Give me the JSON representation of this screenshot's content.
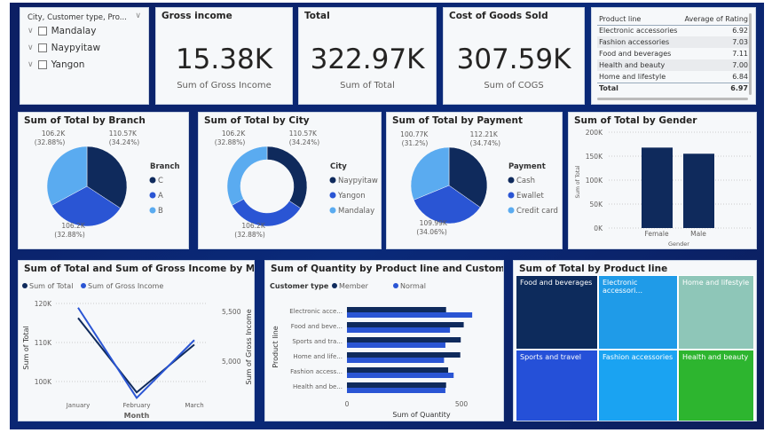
{
  "slicer": {
    "header": "City, Customer type, Pro...",
    "items": [
      "Mandalay",
      "Naypyitaw",
      "Yangon"
    ]
  },
  "kpis": [
    {
      "title": "Gross income",
      "value": "15.38K",
      "label": "Sum of Gross Income"
    },
    {
      "title": "Total",
      "value": "322.97K",
      "label": "Sum of Total"
    },
    {
      "title": "Cost of Goods Sold",
      "value": "307.59K",
      "label": "Sum of COGS"
    }
  ],
  "rating_table": {
    "headers": [
      "Product line",
      "Average of Rating"
    ],
    "rows": [
      [
        "Electronic accessories",
        "6.92"
      ],
      [
        "Fashion accessories",
        "7.03"
      ],
      [
        "Food and beverages",
        "7.11"
      ],
      [
        "Health and beauty",
        "7.00"
      ],
      [
        "Home and lifestyle",
        "6.84"
      ]
    ],
    "total": [
      "Total",
      "6.97"
    ]
  },
  "colors": {
    "dark": "#0f2a5c",
    "mid": "#2a55d4",
    "light": "#5aabf0",
    "background": "#0c1f63"
  },
  "chart_data": [
    {
      "type": "pie",
      "title": "Sum of Total by Branch",
      "legend_title": "Branch",
      "legend": "right",
      "slices": [
        {
          "name": "C",
          "value": 110570,
          "label": "110.57K",
          "pct": "(34.24%)"
        },
        {
          "name": "A",
          "value": 106200,
          "label": "106.2K",
          "pct": "(32.88%)"
        },
        {
          "name": "B",
          "value": 106200,
          "label": "106.2K",
          "pct": "(32.88%)"
        }
      ]
    },
    {
      "type": "donut",
      "title": "Sum of Total by City",
      "legend_title": "City",
      "legend": "right",
      "slices": [
        {
          "name": "Naypyitaw",
          "value": 110570,
          "label": "110.57K",
          "pct": "(34.24%)"
        },
        {
          "name": "Yangon",
          "value": 106200,
          "label": "106.2K",
          "pct": "(32.88%)"
        },
        {
          "name": "Mandalay",
          "value": 106200,
          "label": "106.2K",
          "pct": "(32.88%)"
        }
      ]
    },
    {
      "type": "pie",
      "title": "Sum of Total by Payment",
      "legend_title": "Payment",
      "legend": "right",
      "slices": [
        {
          "name": "Cash",
          "value": 112210,
          "label": "112.21K",
          "pct": "(34.74%)"
        },
        {
          "name": "Ewallet",
          "value": 109990,
          "label": "109.99K",
          "pct": "(34.06%)"
        },
        {
          "name": "Credit card",
          "value": 100770,
          "label": "100.77K",
          "pct": "(31.2%)"
        }
      ]
    },
    {
      "type": "bar",
      "title": "Sum of Total by Gender",
      "xlabel": "Gender",
      "ylabel": "Sum of Total",
      "categories": [
        "Female",
        "Male"
      ],
      "values": [
        167880,
        155080
      ],
      "ylim": [
        0,
        200000
      ],
      "yticks": [
        "0K",
        "50K",
        "100K",
        "150K",
        "200K"
      ],
      "grid": true
    },
    {
      "type": "line",
      "title": "Sum of Total and Sum of Gross Income by Month",
      "xlabel": "Month",
      "ylabel": "Sum of Total",
      "y2label": "Sum of Gross Income",
      "categories": [
        "January",
        "February",
        "March"
      ],
      "series": [
        {
          "name": "Sum of Total",
          "values": [
            116291,
            97219,
            109456
          ],
          "axis": "left"
        },
        {
          "name": "Sum of Gross Income",
          "values": [
            5538,
            4630,
            5212
          ],
          "axis": "right"
        }
      ],
      "yticks": [
        "100K",
        "110K",
        "120K"
      ],
      "y2ticks": [
        "5,000",
        "5,500"
      ],
      "legend": "top-left",
      "grid": true
    },
    {
      "type": "bar",
      "orientation": "horizontal",
      "title": "Sum of Quantity by Product line and Customer type",
      "xlabel": "Sum of Quantity",
      "ylabel": "Product line",
      "legend_title": "Customer type",
      "legend": "top-left",
      "categories": [
        "Electronic acce...",
        "Food and beve...",
        "Sports and tra...",
        "Home and life...",
        "Fashion access...",
        "Health and be..."
      ],
      "series": [
        {
          "name": "Member",
          "values": [
            433,
            510,
            497,
            495,
            442,
            433
          ]
        },
        {
          "name": "Normal",
          "values": [
            547,
            450,
            430,
            424,
            466,
            430
          ]
        }
      ],
      "xticks": [
        "0",
        "500"
      ],
      "xlim": [
        0,
        560
      ]
    },
    {
      "type": "treemap",
      "title": "Sum of Total by Product line",
      "cells": [
        {
          "name": "Food and beverages",
          "color": "#0d2b5c"
        },
        {
          "name": "Electronic accessori...",
          "color": "#1f9be8"
        },
        {
          "name": "Home and lifestyle",
          "color": "#8ec6b8"
        },
        {
          "name": "Sports and travel",
          "color": "#2550d8"
        },
        {
          "name": "Fashion accessories",
          "color": "#1aa3f2"
        },
        {
          "name": "Health and beauty",
          "color": "#2db52f"
        }
      ]
    }
  ]
}
